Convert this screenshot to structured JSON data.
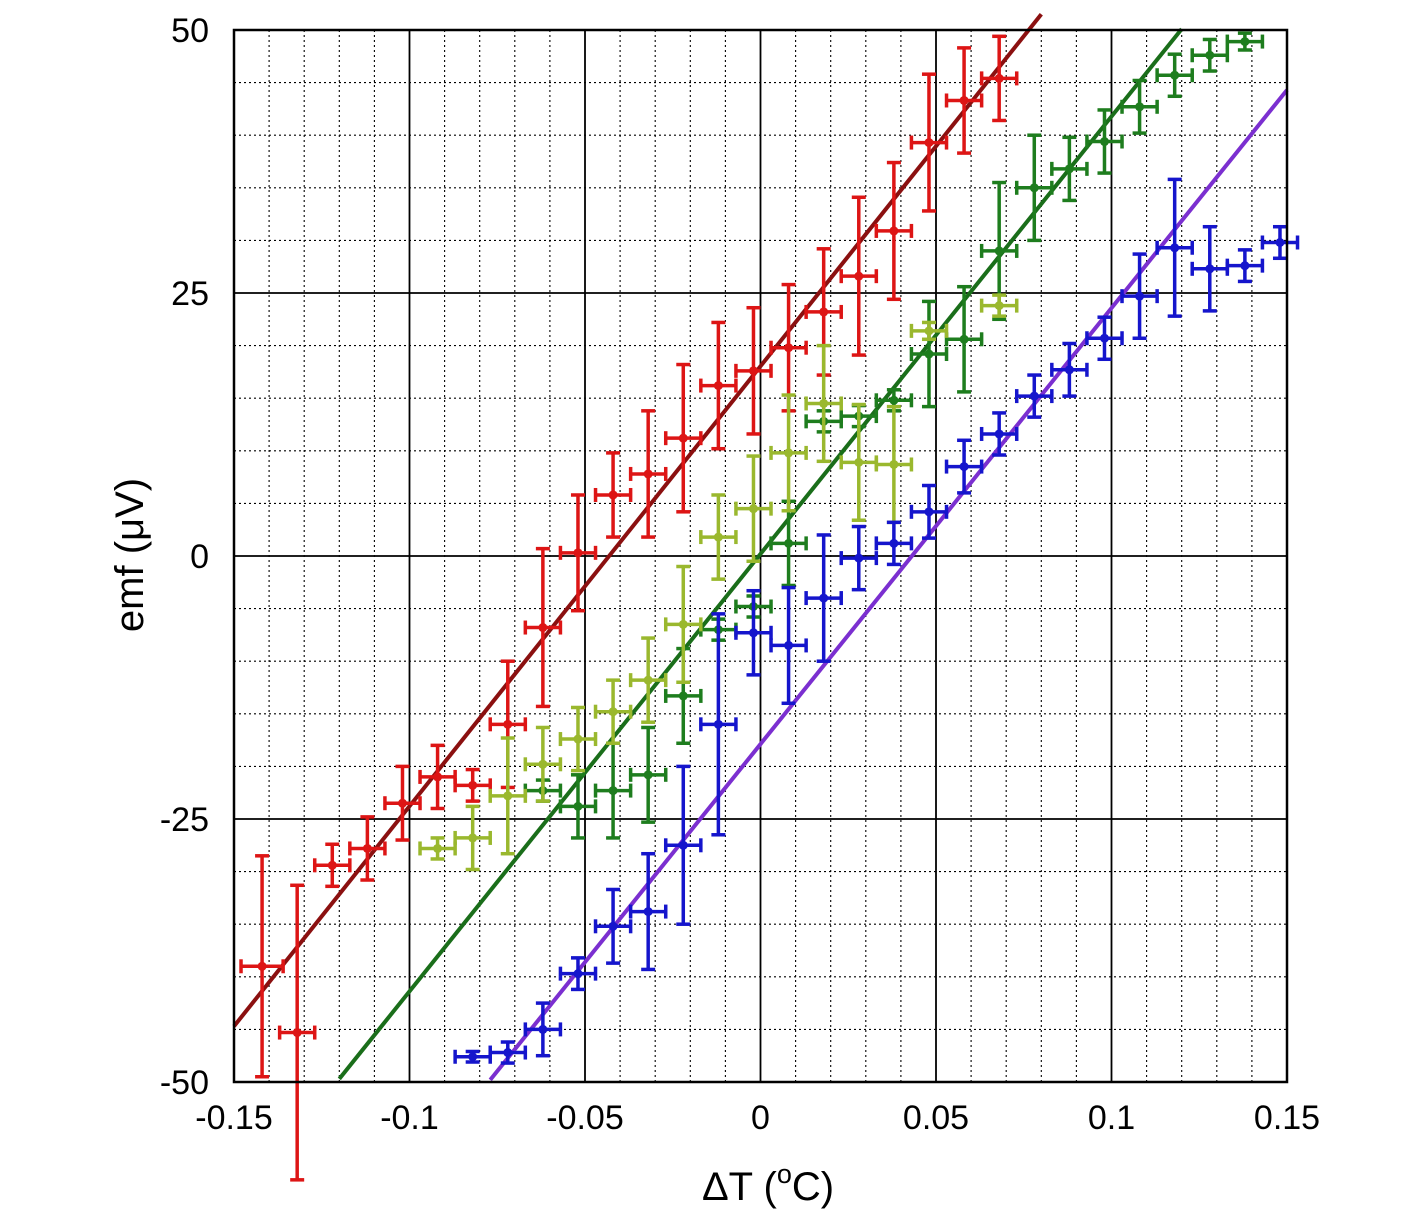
{
  "chart_data": {
    "type": "scatter",
    "xlabel": "ΔT (",
    "xlabel_sup": "o",
    "xlabel_unit": "C)",
    "ylabel": "emf (μV)",
    "xlim": [
      -0.15,
      0.15
    ],
    "ylim": [
      -50,
      50
    ],
    "grid": "major solid, minor dotted",
    "x_ticks": [
      "-0.15",
      "-0.1",
      "-0.05",
      "0",
      "0.05",
      "0.1",
      "0.15"
    ],
    "y_ticks": [
      "50",
      "25",
      "0",
      "-25",
      "-50"
    ],
    "fit_lines": [
      {
        "color": "#8b1010",
        "x": [
          -0.15,
          0.08
        ],
        "y": [
          -44.7,
          51.5
        ]
      },
      {
        "color": "#1a6e1a",
        "x": [
          -0.12,
          0.12
        ],
        "y": [
          -49.7,
          50.1
        ]
      },
      {
        "color": "#7b2fd0",
        "x": [
          -0.077,
          0.15
        ],
        "y": [
          -49.8,
          44.3
        ]
      }
    ],
    "series": [
      {
        "color": "#dd1515",
        "points": [
          [
            -0.142,
            -39.0,
            0.006,
            10.5
          ],
          [
            -0.132,
            -45.3,
            0.005,
            14.0
          ],
          [
            -0.122,
            -29.4,
            0.005,
            2.0
          ],
          [
            -0.112,
            -27.8,
            0.005,
            3.0
          ],
          [
            -0.102,
            -23.5,
            0.005,
            3.5
          ],
          [
            -0.092,
            -21.0,
            0.005,
            3.0
          ],
          [
            -0.082,
            -21.8,
            0.005,
            1.5
          ],
          [
            -0.072,
            -16.0,
            0.005,
            6.0
          ],
          [
            -0.062,
            -6.8,
            0.005,
            7.5
          ],
          [
            -0.052,
            0.3,
            0.005,
            5.5
          ],
          [
            -0.042,
            5.8,
            0.005,
            4.0
          ],
          [
            -0.032,
            7.8,
            0.005,
            6.0
          ],
          [
            -0.022,
            11.2,
            0.005,
            7.0
          ],
          [
            -0.012,
            16.2,
            0.005,
            6.0
          ],
          [
            -0.002,
            17.6,
            0.005,
            6.0
          ],
          [
            0.008,
            19.8,
            0.005,
            6.0
          ],
          [
            0.018,
            23.2,
            0.005,
            6.0
          ],
          [
            0.028,
            26.6,
            0.005,
            7.5
          ],
          [
            0.038,
            30.9,
            0.005,
            6.5
          ],
          [
            0.048,
            39.3,
            0.005,
            6.5
          ],
          [
            0.058,
            43.3,
            0.005,
            5.0
          ],
          [
            0.068,
            45.4,
            0.005,
            4.0
          ]
        ]
      },
      {
        "color": "#1e7d1e",
        "points": [
          [
            -0.062,
            -22.3,
            0.005,
            1.0
          ],
          [
            -0.052,
            -23.8,
            0.005,
            3.0
          ],
          [
            -0.042,
            -22.3,
            0.005,
            4.5
          ],
          [
            -0.032,
            -20.8,
            0.005,
            4.5
          ],
          [
            -0.022,
            -13.3,
            0.005,
            4.5
          ],
          [
            -0.012,
            -7.0,
            0.005,
            1.0
          ],
          [
            -0.002,
            -4.8,
            0.005,
            1.0
          ],
          [
            0.008,
            1.2,
            0.005,
            4.0
          ],
          [
            0.018,
            12.8,
            0.005,
            1.0
          ],
          [
            0.028,
            13.3,
            0.005,
            1.0
          ],
          [
            0.038,
            14.8,
            0.005,
            1.0
          ],
          [
            0.048,
            19.2,
            0.005,
            5.0
          ],
          [
            0.058,
            20.6,
            0.005,
            5.0
          ],
          [
            0.068,
            29.0,
            0.005,
            6.5
          ],
          [
            0.078,
            35.0,
            0.005,
            5.0
          ],
          [
            0.088,
            36.8,
            0.005,
            3.0
          ],
          [
            0.098,
            39.4,
            0.005,
            3.0
          ],
          [
            0.108,
            42.7,
            0.005,
            2.5
          ],
          [
            0.118,
            45.7,
            0.005,
            2.0
          ],
          [
            0.128,
            47.6,
            0.005,
            1.5
          ],
          [
            0.138,
            48.9,
            0.005,
            0.8
          ]
        ]
      },
      {
        "color": "#9ab82e",
        "points": [
          [
            -0.092,
            -27.8,
            0.005,
            1.0
          ],
          [
            -0.082,
            -26.8,
            0.005,
            3.0
          ],
          [
            -0.072,
            -22.8,
            0.005,
            5.5
          ],
          [
            -0.062,
            -19.8,
            0.005,
            3.5
          ],
          [
            -0.052,
            -17.4,
            0.005,
            3.0
          ],
          [
            -0.042,
            -14.8,
            0.005,
            3.0
          ],
          [
            -0.032,
            -11.8,
            0.005,
            4.0
          ],
          [
            -0.022,
            -6.5,
            0.005,
            5.5
          ],
          [
            -0.012,
            1.8,
            0.005,
            4.0
          ],
          [
            -0.002,
            4.5,
            0.005,
            5.0
          ],
          [
            0.008,
            9.8,
            0.005,
            5.5
          ],
          [
            0.018,
            14.5,
            0.005,
            5.5
          ],
          [
            0.028,
            8.9,
            0.005,
            5.5
          ],
          [
            0.038,
            8.7,
            0.005,
            5.5
          ],
          [
            0.048,
            21.4,
            0.005,
            0.8
          ],
          [
            0.068,
            23.8,
            0.005,
            1.0
          ]
        ]
      },
      {
        "color": "#1515cc",
        "points": [
          [
            -0.082,
            -47.6,
            0.005,
            0.5
          ],
          [
            -0.072,
            -47.2,
            0.005,
            1.0
          ],
          [
            -0.062,
            -45.0,
            0.005,
            2.5
          ],
          [
            -0.052,
            -39.7,
            0.005,
            1.5
          ],
          [
            -0.042,
            -35.2,
            0.005,
            3.5
          ],
          [
            -0.032,
            -33.8,
            0.005,
            5.5
          ],
          [
            -0.022,
            -27.5,
            0.005,
            7.5
          ],
          [
            -0.012,
            -16.0,
            0.005,
            10.5
          ],
          [
            -0.002,
            -7.3,
            0.005,
            4.0
          ],
          [
            0.008,
            -8.5,
            0.005,
            5.5
          ],
          [
            0.018,
            -4.0,
            0.005,
            6.0
          ],
          [
            0.028,
            -0.2,
            0.005,
            3.0
          ],
          [
            0.038,
            1.2,
            0.005,
            2.0
          ],
          [
            0.048,
            4.2,
            0.005,
            2.5
          ],
          [
            0.058,
            8.5,
            0.005,
            2.5
          ],
          [
            0.068,
            11.6,
            0.005,
            2.0
          ],
          [
            0.078,
            15.2,
            0.005,
            2.0
          ],
          [
            0.088,
            17.7,
            0.005,
            2.5
          ],
          [
            0.098,
            20.7,
            0.005,
            2.0
          ],
          [
            0.108,
            24.7,
            0.005,
            4.0
          ],
          [
            0.118,
            29.3,
            0.005,
            6.5
          ],
          [
            0.128,
            27.3,
            0.005,
            4.0
          ],
          [
            0.138,
            27.6,
            0.005,
            1.5
          ],
          [
            0.148,
            29.8,
            0.005,
            1.5
          ]
        ]
      }
    ]
  }
}
